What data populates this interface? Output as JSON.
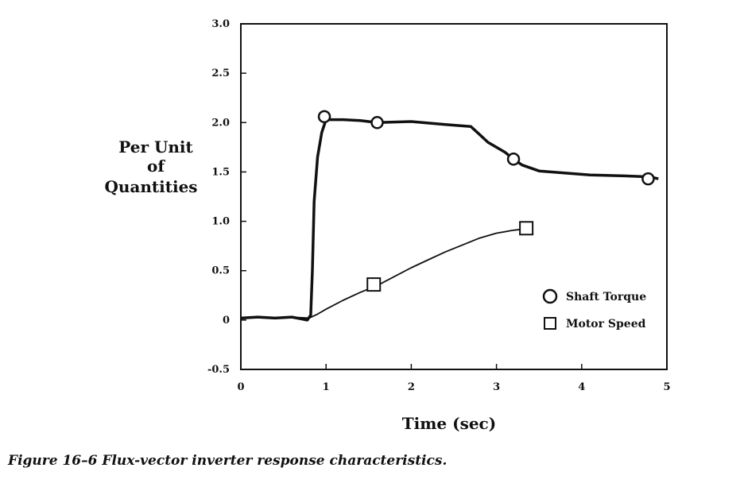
{
  "caption": "Figure 16–6  Flux-vector inverter response characteristics.",
  "chart_data": {
    "type": "line",
    "title": "",
    "xlabel": "Time (sec)",
    "ylabel_lines": [
      "Per Unit",
      "of",
      "Quantities"
    ],
    "xlim": [
      0,
      5
    ],
    "ylim": [
      -0.5,
      3.0
    ],
    "x_ticks": [
      "0",
      "1",
      "2",
      "3",
      "4",
      "5"
    ],
    "y_ticks": [
      "3.0",
      "2.5",
      "2.0",
      "1.5",
      "1.0",
      "0.5",
      "0",
      "-0.5"
    ],
    "grid": false,
    "legend_position": "lower-right",
    "series": [
      {
        "name": "Shaft Torque",
        "marker": "circle",
        "color": "#111111",
        "x": [
          0.0,
          0.2,
          0.4,
          0.6,
          0.78,
          0.82,
          0.84,
          0.86,
          0.9,
          0.95,
          1.0,
          1.2,
          1.4,
          1.6,
          2.0,
          2.4,
          2.7,
          2.8,
          2.9,
          3.0,
          3.1,
          3.2,
          3.3,
          3.5,
          3.8,
          4.1,
          4.5,
          4.8,
          4.9
        ],
        "y": [
          0.02,
          0.03,
          0.02,
          0.03,
          0.0,
          0.05,
          0.5,
          1.2,
          1.65,
          1.9,
          2.03,
          2.03,
          2.02,
          2.0,
          2.01,
          1.98,
          1.96,
          1.88,
          1.8,
          1.75,
          1.7,
          1.63,
          1.57,
          1.51,
          1.49,
          1.47,
          1.46,
          1.45,
          1.43
        ],
        "marker_x": [
          0.98,
          1.6,
          3.2,
          4.78
        ],
        "marker_y": [
          2.06,
          2.0,
          1.63,
          1.43
        ]
      },
      {
        "name": "Motor Speed",
        "marker": "square",
        "color": "#111111",
        "x": [
          0.0,
          0.2,
          0.4,
          0.6,
          0.8,
          0.9,
          1.0,
          1.2,
          1.4,
          1.6,
          1.8,
          2.0,
          2.2,
          2.4,
          2.6,
          2.8,
          3.0,
          3.2,
          3.4
        ],
        "y": [
          0.02,
          0.03,
          0.02,
          0.03,
          0.02,
          0.06,
          0.11,
          0.2,
          0.28,
          0.35,
          0.44,
          0.53,
          0.61,
          0.69,
          0.76,
          0.83,
          0.88,
          0.91,
          0.93
        ],
        "marker_x": [
          1.56,
          3.35
        ],
        "marker_y": [
          0.36,
          0.93
        ]
      }
    ]
  }
}
